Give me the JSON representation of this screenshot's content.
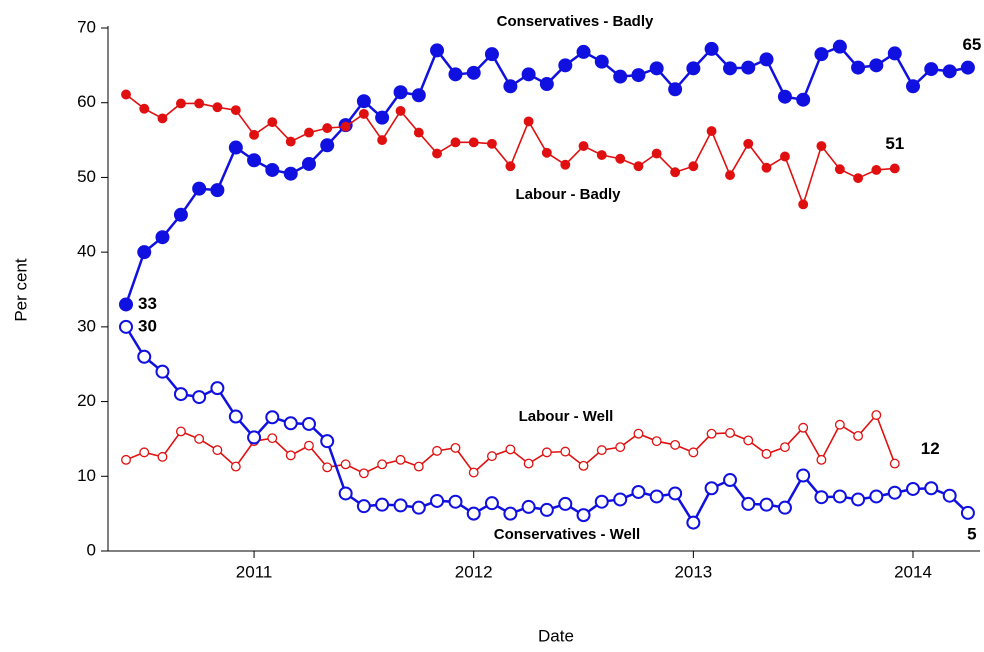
{
  "chart_data": {
    "type": "line",
    "x_label": "Date",
    "y_label": "Per cent",
    "xlim": [
      2010.335,
      2014.305
    ],
    "xticks": [
      2011,
      2012,
      2013,
      2014
    ],
    "ylim": [
      0,
      70
    ],
    "yticks": [
      0,
      10,
      20,
      30,
      40,
      50,
      60,
      70
    ],
    "grid": false,
    "series": [
      {
        "name": "Conservatives - Badly",
        "color": "#1010e0",
        "marker": "filled",
        "x": [
          2010.417,
          2010.5,
          2010.583,
          2010.667,
          2010.75,
          2010.833,
          2010.917,
          2011,
          2011.083,
          2011.167,
          2011.25,
          2011.333,
          2011.417,
          2011.5,
          2011.583,
          2011.667,
          2011.75,
          2011.833,
          2011.917,
          2012,
          2012.083,
          2012.167,
          2012.25,
          2012.333,
          2012.417,
          2012.5,
          2012.583,
          2012.667,
          2012.75,
          2012.833,
          2012.917,
          2013,
          2013.083,
          2013.167,
          2013.25,
          2013.333,
          2013.417,
          2013.5,
          2013.583,
          2013.667,
          2013.75,
          2013.833,
          2013.917,
          2014,
          2014.083,
          2014.167,
          2014.25
        ],
        "values": [
          33,
          40,
          42,
          45,
          48.5,
          48.3,
          54,
          52.3,
          51,
          50.5,
          51.8,
          54.3,
          57,
          60.2,
          58,
          61.4,
          61,
          67,
          63.8,
          64,
          66.5,
          62.2,
          63.8,
          62.5,
          65,
          66.8,
          65.5,
          63.5,
          63.7,
          64.6,
          61.8,
          64.6,
          67.2,
          64.6,
          64.7,
          65.8,
          60.8,
          60.4,
          66.5,
          67.5,
          64.7,
          65,
          66.6,
          62.2,
          64.5,
          64.2,
          64.7
        ],
        "value_labels": [
          "33",
          null,
          null,
          null,
          null,
          null,
          null,
          null,
          null,
          null,
          null,
          null,
          null,
          null,
          null,
          null,
          null,
          null,
          null,
          null,
          null,
          null,
          null,
          null,
          null,
          null,
          null,
          null,
          null,
          null,
          null,
          null,
          null,
          null,
          null,
          null,
          null,
          null,
          null,
          null,
          null,
          null,
          null,
          null,
          null,
          null,
          "65"
        ]
      },
      {
        "name": "Labour - Badly",
        "color": "#e01010",
        "marker": "filled",
        "x": [
          2010.417,
          2010.5,
          2010.583,
          2010.667,
          2010.75,
          2010.833,
          2010.917,
          2011,
          2011.083,
          2011.167,
          2011.25,
          2011.333,
          2011.417,
          2011.5,
          2011.583,
          2011.667,
          2011.75,
          2011.833,
          2011.917,
          2012,
          2012.083,
          2012.167,
          2012.25,
          2012.333,
          2012.417,
          2012.5,
          2012.583,
          2012.667,
          2012.75,
          2012.833,
          2012.917,
          2013,
          2013.083,
          2013.167,
          2013.25,
          2013.333,
          2013.417,
          2013.5,
          2013.583,
          2013.667,
          2013.75,
          2013.833,
          2013.917
        ],
        "values": [
          61.1,
          59.2,
          57.9,
          59.9,
          59.9,
          59.4,
          59,
          55.7,
          57.4,
          54.8,
          56,
          56.6,
          56.8,
          58.5,
          55,
          58.9,
          56,
          53.2,
          54.7,
          54.7,
          54.5,
          51.5,
          57.5,
          53.3,
          51.7,
          54.2,
          53,
          52.5,
          51.5,
          53.2,
          50.7,
          51.5,
          56.2,
          50.3,
          54.5,
          51.3,
          52.8,
          46.4,
          54.2,
          51.1,
          49.9,
          51,
          51.2
        ],
        "value_labels": [
          null,
          null,
          null,
          null,
          null,
          null,
          null,
          null,
          null,
          null,
          null,
          null,
          null,
          null,
          null,
          null,
          null,
          null,
          null,
          null,
          null,
          null,
          null,
          null,
          null,
          null,
          null,
          null,
          null,
          null,
          null,
          null,
          null,
          null,
          null,
          null,
          null,
          null,
          null,
          null,
          null,
          null,
          "51"
        ]
      },
      {
        "name": "Labour - Well",
        "color": "#e01010",
        "marker": "open",
        "x": [
          2010.417,
          2010.5,
          2010.583,
          2010.667,
          2010.75,
          2010.833,
          2010.917,
          2011,
          2011.083,
          2011.167,
          2011.25,
          2011.333,
          2011.417,
          2011.5,
          2011.583,
          2011.667,
          2011.75,
          2011.833,
          2011.917,
          2012,
          2012.083,
          2012.167,
          2012.25,
          2012.333,
          2012.417,
          2012.5,
          2012.583,
          2012.667,
          2012.75,
          2012.833,
          2012.917,
          2013,
          2013.083,
          2013.167,
          2013.25,
          2013.333,
          2013.417,
          2013.5,
          2013.583,
          2013.667,
          2013.75,
          2013.833,
          2013.917
        ],
        "values": [
          12.2,
          13.2,
          12.6,
          16,
          15,
          13.5,
          11.3,
          14.7,
          15.1,
          12.8,
          14.1,
          11.2,
          11.6,
          10.4,
          11.6,
          12.2,
          11.3,
          13.4,
          13.8,
          10.5,
          12.7,
          13.6,
          11.7,
          13.2,
          13.3,
          11.4,
          13.5,
          13.9,
          15.7,
          14.7,
          14.2,
          13.2,
          15.7,
          15.8,
          14.8,
          13,
          13.9,
          16.5,
          12.2,
          16.9,
          15.4,
          18.2,
          11.7
        ],
        "value_labels": [
          null,
          null,
          null,
          null,
          null,
          null,
          null,
          null,
          null,
          null,
          null,
          null,
          null,
          null,
          null,
          null,
          null,
          null,
          null,
          null,
          null,
          null,
          null,
          null,
          null,
          null,
          null,
          null,
          null,
          null,
          null,
          null,
          null,
          null,
          null,
          null,
          null,
          null,
          null,
          null,
          null,
          null,
          "12"
        ]
      },
      {
        "name": "Conservatives - Well",
        "color": "#1010e0",
        "marker": "open",
        "x": [
          2010.417,
          2010.5,
          2010.583,
          2010.667,
          2010.75,
          2010.833,
          2010.917,
          2011,
          2011.083,
          2011.167,
          2011.25,
          2011.333,
          2011.417,
          2011.5,
          2011.583,
          2011.667,
          2011.75,
          2011.833,
          2011.917,
          2012,
          2012.083,
          2012.167,
          2012.25,
          2012.333,
          2012.417,
          2012.5,
          2012.583,
          2012.667,
          2012.75,
          2012.833,
          2012.917,
          2013,
          2013.083,
          2013.167,
          2013.25,
          2013.333,
          2013.417,
          2013.5,
          2013.583,
          2013.667,
          2013.75,
          2013.833,
          2013.917,
          2014,
          2014.083,
          2014.167,
          2014.25
        ],
        "values": [
          30,
          26,
          24,
          21,
          20.6,
          21.8,
          18,
          15.2,
          17.9,
          17.1,
          17,
          14.7,
          7.7,
          6,
          6.2,
          6.1,
          5.8,
          6.7,
          6.6,
          5,
          6.4,
          5,
          5.9,
          5.5,
          6.3,
          4.8,
          6.6,
          6.9,
          7.9,
          7.3,
          7.7,
          3.8,
          8.4,
          9.5,
          6.3,
          6.2,
          5.8,
          10.1,
          7.2,
          7.3,
          6.9,
          7.3,
          7.8,
          8.3,
          8.4,
          7.4,
          5.1
        ],
        "value_labels": [
          "30",
          null,
          null,
          null,
          null,
          null,
          null,
          null,
          null,
          null,
          null,
          null,
          null,
          null,
          null,
          null,
          null,
          null,
          null,
          null,
          null,
          null,
          null,
          null,
          null,
          null,
          null,
          null,
          null,
          null,
          null,
          null,
          null,
          null,
          null,
          null,
          null,
          null,
          null,
          null,
          null,
          null,
          null,
          null,
          null,
          null,
          "5"
        ]
      }
    ]
  }
}
